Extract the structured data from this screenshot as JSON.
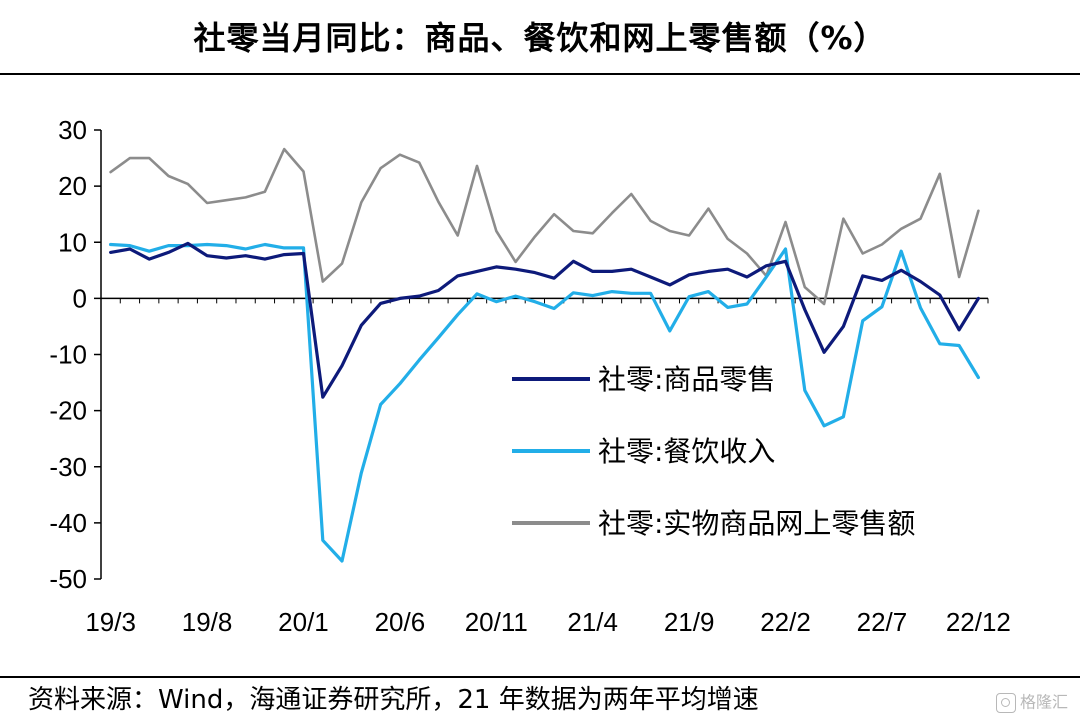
{
  "header": {
    "title": "社零当月同比：商品、餐饮和网上零售额（%）"
  },
  "footer": {
    "source": "资料来源：Wind，海通证券研究所，21 年数据为两年平均增速"
  },
  "watermark": {
    "icon": "gezhi-logo-icon",
    "text": "格隆汇"
  },
  "colors": {
    "goods": "#0d1a7a",
    "catering": "#22aee8",
    "online": "#8c8c8c",
    "axis": "#000000"
  },
  "chart_data": {
    "type": "line",
    "title": "社零当月同比：商品、餐饮和网上零售额（%）",
    "x_tick_labels": [
      "19/3",
      "19/8",
      "20/1",
      "20/6",
      "20/11",
      "21/4",
      "21/9",
      "22/2",
      "22/7",
      "22/12"
    ],
    "x": [
      "19/3",
      "19/4",
      "19/5",
      "19/6",
      "19/7",
      "19/8",
      "19/9",
      "19/10",
      "19/11",
      "19/12",
      "20/1",
      "20/2",
      "20/3",
      "20/4",
      "20/5",
      "20/6",
      "20/7",
      "20/8",
      "20/9",
      "20/10",
      "20/11",
      "20/12",
      "21/1",
      "21/2",
      "21/3",
      "21/4",
      "21/5",
      "21/6",
      "21/7",
      "21/8",
      "21/9",
      "21/10",
      "21/11",
      "21/12",
      "22/1",
      "22/2",
      "22/3",
      "22/4",
      "22/5",
      "22/6",
      "22/7",
      "22/8",
      "22/9",
      "22/10",
      "22/11",
      "22/12"
    ],
    "ylim": [
      -50,
      30
    ],
    "yticks": [
      30,
      20,
      10,
      0,
      -10,
      -20,
      -30,
      -40,
      -50
    ],
    "grid": false,
    "legend_position": "lower-right",
    "series": [
      {
        "name": "社零:商品零售",
        "values": [
          8.2,
          8.8,
          7.0,
          8.2,
          9.8,
          7.6,
          7.2,
          7.6,
          7.0,
          7.8,
          8.0,
          -17.6,
          -12.0,
          -4.8,
          -0.9,
          0.0,
          0.4,
          1.4,
          4.0,
          4.8,
          5.6,
          5.2,
          4.6,
          3.6,
          6.6,
          4.8,
          4.8,
          5.2,
          3.8,
          2.4,
          4.2,
          4.8,
          5.2,
          3.8,
          5.8,
          6.6,
          -2.0,
          -9.6,
          -5.0,
          4.0,
          3.2,
          5.0,
          3.0,
          0.6,
          -5.6,
          0.0
        ]
      },
      {
        "name": "社零:餐饮收入",
        "values": [
          9.6,
          9.4,
          8.4,
          9.4,
          9.4,
          9.6,
          9.4,
          8.8,
          9.6,
          9.0,
          9.0,
          -43.1,
          -46.8,
          -31.1,
          -18.9,
          -15.2,
          -11.0,
          -7.0,
          -2.9,
          0.8,
          -0.6,
          0.4,
          -0.6,
          -1.8,
          1.0,
          0.5,
          1.2,
          0.9,
          0.9,
          -5.8,
          0.3,
          1.2,
          -1.6,
          -1.0,
          3.8,
          8.8,
          -16.4,
          -22.7,
          -21.1,
          -4.0,
          -1.5,
          8.4,
          -1.7,
          -8.1,
          -8.4,
          -14.1
        ]
      },
      {
        "name": "社零:实物商品网上零售额",
        "values": [
          22.5,
          25.0,
          25.0,
          21.8,
          20.4,
          17.0,
          17.5,
          18.0,
          19.0,
          26.6,
          22.6,
          3.0,
          6.2,
          17.1,
          23.2,
          25.6,
          24.2,
          17.2,
          11.2,
          23.6,
          12.0,
          6.5,
          11.0,
          15.0,
          12.0,
          11.6,
          15.2,
          18.6,
          13.8,
          12.0,
          11.2,
          16.0,
          10.6,
          8.0,
          4.0,
          13.6,
          2.0,
          -1.0,
          14.2,
          8.0,
          9.6,
          12.4,
          14.2,
          22.2,
          3.8,
          15.6
        ]
      }
    ]
  }
}
